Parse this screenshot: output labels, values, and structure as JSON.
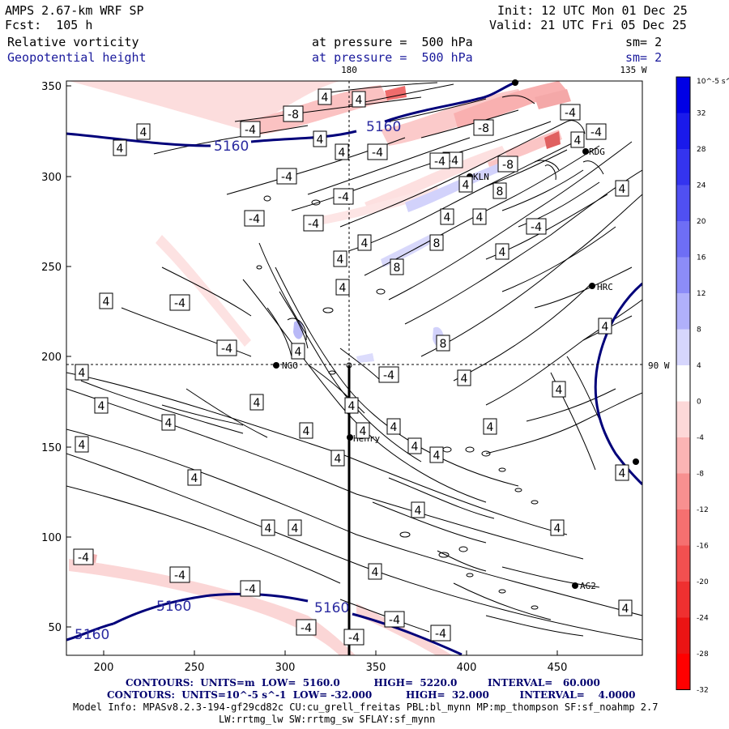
{
  "header": {
    "model": "AMPS 2.67-km WRF SP",
    "fcst": "Fcst:  105 h",
    "init": "Init: 12 UTC Mon 01 Dec 25",
    "valid": "Valid: 21 UTC Fri 05 Dec 25",
    "field1": "Relative vorticity",
    "field2": "Geopotential height",
    "pressure1": "at pressure =  500 hPa",
    "pressure2": "at pressure =  500 hPa",
    "sm1": "sm= 2",
    "sm2": "sm= 2"
  },
  "map": {
    "x_ticks": [
      "200",
      "250",
      "300",
      "350",
      "400",
      "450"
    ],
    "y_ticks": [
      "350",
      "300",
      "250",
      "200",
      "150",
      "100",
      "50"
    ],
    "lon_top_1": "180",
    "lon_top_2": "135 W",
    "lon_right": "90 W",
    "stations": [
      "RDG",
      "KLN",
      "HRC",
      "NGO",
      "Henry",
      "AG2"
    ],
    "height_labels": [
      "5160",
      "5160",
      "5160",
      "5160",
      "5160"
    ],
    "vort_labels": [
      "4",
      "-4",
      "-8",
      "8"
    ]
  },
  "colorbar": {
    "unit": "10^-5 s^-1",
    "ticks": [
      "32",
      "28",
      "24",
      "20",
      "16",
      "12",
      "8",
      "4",
      "0",
      "-4",
      "-8",
      "-12",
      "-16",
      "-20",
      "-24",
      "-28",
      "-32"
    ],
    "colors": [
      "#0000e6",
      "#1a1aeb",
      "#3434ef",
      "#5050f2",
      "#6e6ef5",
      "#8c8cf8",
      "#b0b0fb",
      "#d6d6fd",
      "#ffffff",
      "#fdd8d8",
      "#fbb4b4",
      "#f89090",
      "#f57070",
      "#f25050",
      "#ef3030",
      "#eb1414",
      "#ff0000"
    ]
  },
  "footer": {
    "line1": "CONTOURS:  UNITS=m  LOW=  5160.0          HIGH=  5220.0         INTERVAL=   60.000",
    "line2": "CONTOURS:  UNITS=10^-5 s^-1  LOW= -32.000          HIGH=  32.000         INTERVAL=    4.0000",
    "line3": "Model Info: MPASv8.2.3-194-gf29cd82c CU:cu_grell_freitas PBL:bl_mynn MP:mp_thompson SF:sf_noahmp 2.7",
    "line4": "LW:rrtmg_lw SW:rrtmg_sw SFLAY:sf_mynn"
  }
}
